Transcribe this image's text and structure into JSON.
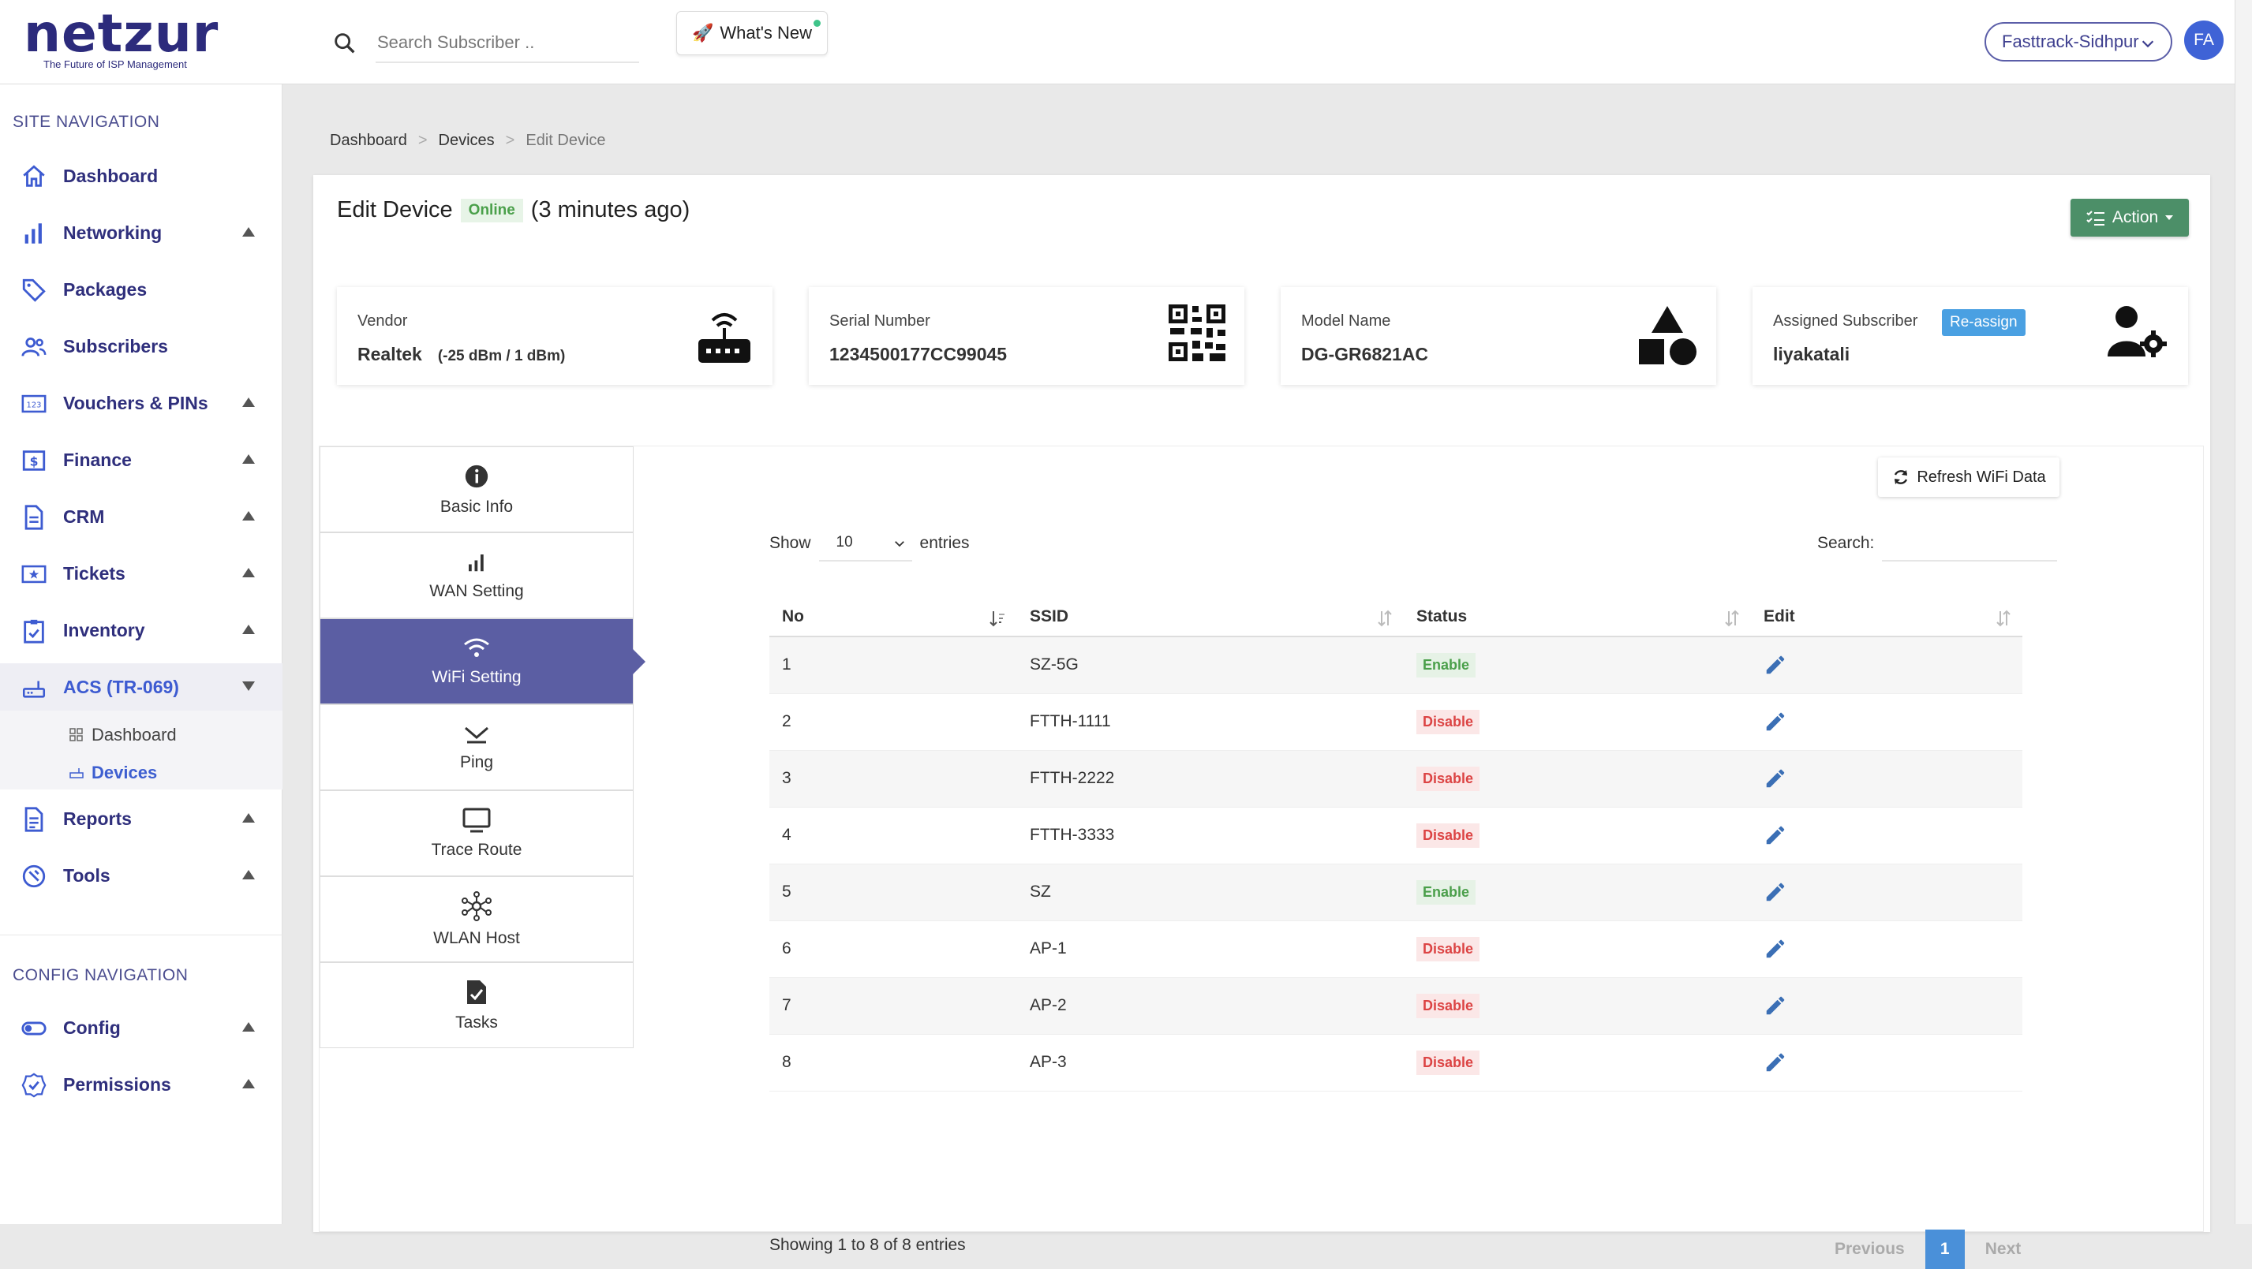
{
  "brand": {
    "name": "netzur",
    "tagline": "The Future of ISP Management"
  },
  "header": {
    "search_placeholder": "Search Subscriber ..",
    "whats_new": "What's New",
    "site": "Fasttrack-Sidhpur",
    "avatar_initials": "FA"
  },
  "sidebar": {
    "site_heading": "SITE NAVIGATION",
    "config_heading": "CONFIG NAVIGATION",
    "items": [
      {
        "label": "Dashboard",
        "icon": "home-icon"
      },
      {
        "label": "Networking",
        "icon": "bar-chart-icon"
      },
      {
        "label": "Packages",
        "icon": "tag-icon"
      },
      {
        "label": "Subscribers",
        "icon": "users-icon"
      },
      {
        "label": "Vouchers & PINs",
        "icon": "voucher-icon"
      },
      {
        "label": "Finance",
        "icon": "dollar-icon"
      },
      {
        "label": "CRM",
        "icon": "document-icon"
      },
      {
        "label": "Tickets",
        "icon": "ticket-icon"
      },
      {
        "label": "Inventory",
        "icon": "clipboard-icon"
      },
      {
        "label": "ACS (TR-069)",
        "icon": "router-icon"
      },
      {
        "label": "Reports",
        "icon": "report-icon"
      },
      {
        "label": "Tools",
        "icon": "tools-icon"
      }
    ],
    "acs_sub": [
      {
        "label": "Dashboard"
      },
      {
        "label": "Devices"
      }
    ],
    "config_items": [
      {
        "label": "Config",
        "icon": "toggle-icon"
      },
      {
        "label": "Permissions",
        "icon": "badge-check-icon"
      }
    ]
  },
  "breadcrumb": [
    "Dashboard",
    "Devices",
    "Edit Device"
  ],
  "device": {
    "title": "Edit Device",
    "status": "Online",
    "last_seen": "(3 minutes ago)",
    "action_label": "Action",
    "vendor_label": "Vendor",
    "vendor": "Realtek",
    "signal": "(-25 dBm / 1 dBm)",
    "serial_label": "Serial Number",
    "serial": "1234500177CC99045",
    "model_label": "Model Name",
    "model": "DG-GR6821AC",
    "subscriber_label": "Assigned Subscriber",
    "subscriber": "liyakatali",
    "reassign_label": "Re-assign"
  },
  "tabs": [
    {
      "label": "Basic Info",
      "icon": "info-icon"
    },
    {
      "label": "WAN Setting",
      "icon": "signal-bars-icon"
    },
    {
      "label": "WiFi Setting",
      "icon": "wifi-icon"
    },
    {
      "label": "Ping",
      "icon": "ping-icon"
    },
    {
      "label": "Trace Route",
      "icon": "monitor-icon"
    },
    {
      "label": "WLAN Host",
      "icon": "network-icon"
    },
    {
      "label": "Tasks",
      "icon": "task-icon"
    }
  ],
  "wifi": {
    "refresh_label": "Refresh WiFi Data",
    "show_label": "Show",
    "entries_label": "entries",
    "page_length": "10",
    "search_label": "Search:",
    "columns": [
      "No",
      "SSID",
      "Status",
      "Edit"
    ],
    "rows": [
      {
        "no": "1",
        "ssid": "SZ-5G",
        "status": "Enable"
      },
      {
        "no": "2",
        "ssid": "FTTH-1111",
        "status": "Disable"
      },
      {
        "no": "3",
        "ssid": "FTTH-2222",
        "status": "Disable"
      },
      {
        "no": "4",
        "ssid": "FTTH-3333",
        "status": "Disable"
      },
      {
        "no": "5",
        "ssid": "SZ",
        "status": "Enable"
      },
      {
        "no": "6",
        "ssid": "AP-1",
        "status": "Disable"
      },
      {
        "no": "7",
        "ssid": "AP-2",
        "status": "Disable"
      },
      {
        "no": "8",
        "ssid": "AP-3",
        "status": "Disable"
      }
    ],
    "showing": "Showing 1 to 8 of 8 entries",
    "prev": "Previous",
    "page": "1",
    "next": "Next"
  },
  "colors": {
    "brand": "#2c2b7c",
    "active_tab": "#5b5ea3",
    "action": "#4c8f68",
    "enable": "#4a9f4a",
    "disable": "#dc4444",
    "link": "#3e5fd0"
  }
}
